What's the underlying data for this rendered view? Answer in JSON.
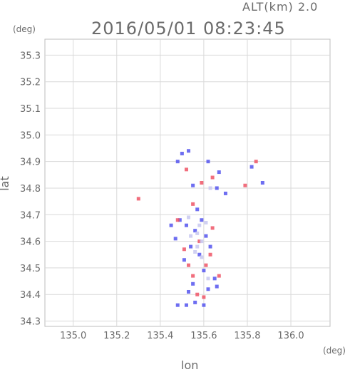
{
  "header": {
    "altitude_label": "ALT(km) 2.0",
    "timestamp": "2016/05/01 08:23:45"
  },
  "chart_data": {
    "type": "scatter",
    "title": "2016/05/01 08:23:45",
    "xlabel": "lon",
    "ylabel": "lat",
    "xunit": "(deg)",
    "yunit": "(deg)",
    "xlim": [
      134.87,
      136.18
    ],
    "ylim": [
      34.28,
      35.36
    ],
    "xticks": [
      135.0,
      135.2,
      135.4,
      135.6,
      135.8,
      136.0
    ],
    "yticks": [
      34.3,
      34.4,
      34.5,
      34.6,
      34.7,
      34.8,
      34.9,
      35.0,
      35.1,
      35.2,
      35.3
    ],
    "xtick_labels": [
      "135.0",
      "135.2",
      "135.4",
      "135.6",
      "135.8",
      "136.0"
    ],
    "ytick_labels": [
      "34.3",
      "34.4",
      "34.5",
      "34.6",
      "34.7",
      "34.8",
      "34.9",
      "35.0",
      "35.1",
      "35.2",
      "35.3"
    ],
    "grid": true,
    "colors": {
      "positive": "#ee5566",
      "negative": "#5555ee",
      "light": "#c8c8f0"
    },
    "series": [
      {
        "color_key": "negative",
        "points": [
          [
            135.5,
            34.93
          ],
          [
            135.53,
            34.94
          ],
          [
            135.48,
            34.9
          ],
          [
            135.62,
            34.9
          ],
          [
            135.67,
            34.86
          ],
          [
            135.82,
            34.88
          ],
          [
            135.87,
            34.82
          ],
          [
            135.55,
            34.81
          ],
          [
            135.66,
            34.8
          ],
          [
            135.7,
            34.78
          ],
          [
            135.49,
            34.68
          ],
          [
            135.52,
            34.66
          ],
          [
            135.56,
            34.64
          ],
          [
            135.59,
            34.68
          ],
          [
            135.61,
            34.62
          ],
          [
            135.54,
            34.58
          ],
          [
            135.58,
            34.55
          ],
          [
            135.51,
            34.53
          ],
          [
            135.6,
            34.49
          ],
          [
            135.65,
            34.46
          ],
          [
            135.55,
            34.44
          ],
          [
            135.53,
            34.41
          ],
          [
            135.62,
            34.42
          ],
          [
            135.66,
            34.43
          ],
          [
            135.48,
            34.36
          ],
          [
            135.52,
            34.36
          ],
          [
            135.56,
            34.37
          ],
          [
            135.6,
            34.36
          ],
          [
            135.47,
            34.61
          ],
          [
            135.63,
            34.58
          ],
          [
            135.57,
            34.72
          ],
          [
            135.45,
            34.66
          ]
        ]
      },
      {
        "color_key": "positive",
        "points": [
          [
            135.52,
            34.87
          ],
          [
            135.59,
            34.82
          ],
          [
            135.64,
            34.84
          ],
          [
            135.79,
            34.81
          ],
          [
            135.84,
            34.9
          ],
          [
            135.3,
            34.76
          ],
          [
            135.55,
            34.74
          ],
          [
            135.51,
            34.57
          ],
          [
            135.58,
            34.6
          ],
          [
            135.63,
            34.55
          ],
          [
            135.55,
            34.47
          ],
          [
            135.61,
            34.51
          ],
          [
            135.57,
            34.4
          ],
          [
            135.6,
            34.39
          ],
          [
            135.67,
            34.47
          ],
          [
            135.48,
            34.68
          ],
          [
            135.64,
            34.65
          ],
          [
            135.53,
            34.51
          ]
        ]
      },
      {
        "color_key": "light",
        "points": [
          [
            135.54,
            34.62
          ],
          [
            135.57,
            34.63
          ],
          [
            135.59,
            34.6
          ],
          [
            135.56,
            34.56
          ],
          [
            135.58,
            34.66
          ],
          [
            135.53,
            34.69
          ],
          [
            135.61,
            34.67
          ],
          [
            135.59,
            34.54
          ],
          [
            135.62,
            34.46
          ],
          [
            135.63,
            34.8
          ],
          [
            135.57,
            34.58
          ]
        ]
      }
    ]
  }
}
